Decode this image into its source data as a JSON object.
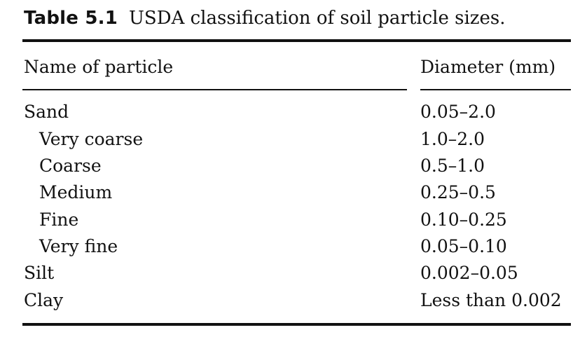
{
  "caption": {
    "label": "Table 5.1",
    "text": "USDA classification of soil particle sizes."
  },
  "table": {
    "headers": {
      "name": "Name of particle",
      "diameter": "Diameter (mm)"
    },
    "rows": [
      {
        "name": "Sand",
        "diameter": "0.05–2.0",
        "indent": false
      },
      {
        "name": "Very coarse",
        "diameter": "1.0–2.0",
        "indent": true
      },
      {
        "name": "Coarse",
        "diameter": "0.5–1.0",
        "indent": true
      },
      {
        "name": "Medium",
        "diameter": "0.25–0.5",
        "indent": true
      },
      {
        "name": "Fine",
        "diameter": "0.10–0.25",
        "indent": true
      },
      {
        "name": "Very fine",
        "diameter": "0.05–0.10",
        "indent": true
      },
      {
        "name": "Silt",
        "diameter": "0.002–0.05",
        "indent": false
      },
      {
        "name": "Clay",
        "diameter": "Less than 0.002",
        "indent": false
      }
    ]
  }
}
